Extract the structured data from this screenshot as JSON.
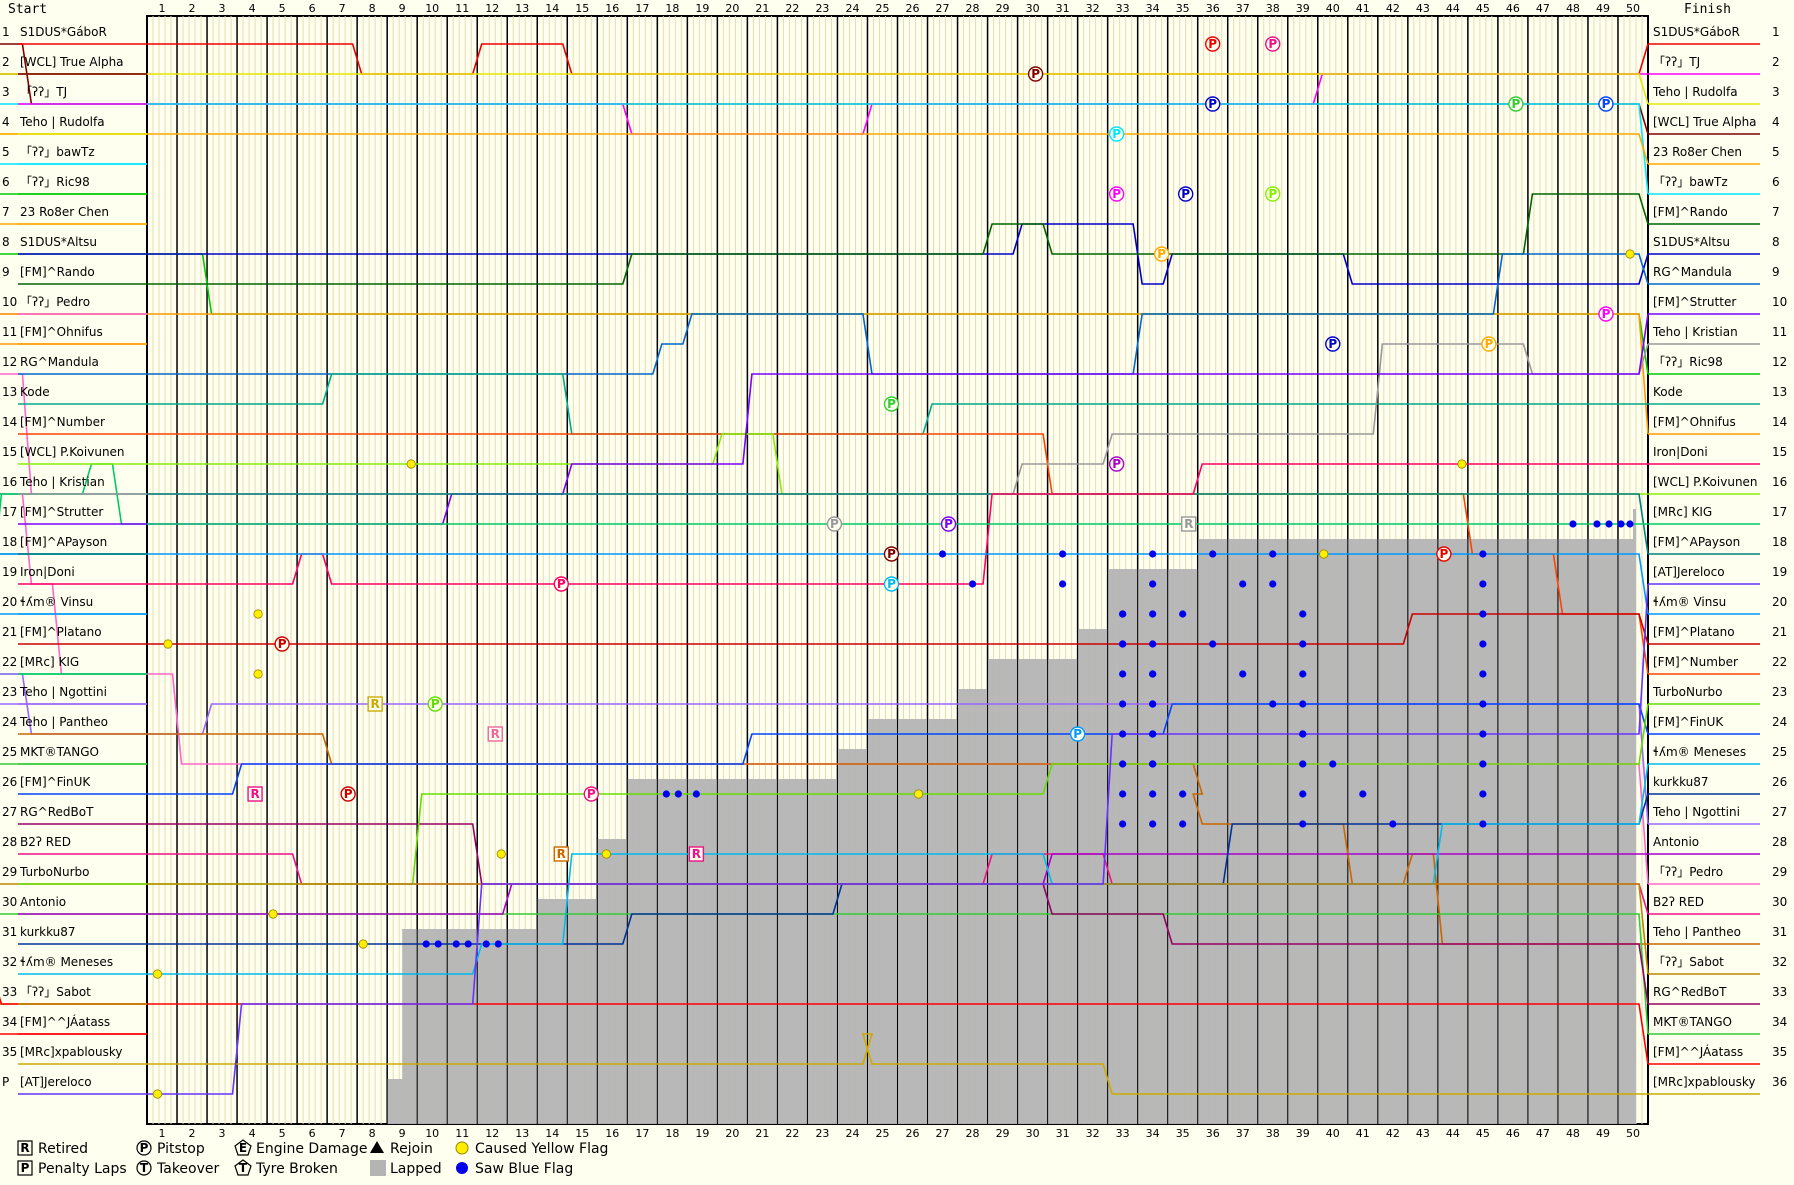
{
  "chart_data": {
    "type": "line",
    "header": {
      "start": "Start",
      "finish": "Finish"
    },
    "laps": 50,
    "positions": 36,
    "left_positions": [
      "1",
      "2",
      "3",
      "4",
      "5",
      "6",
      "7",
      "8",
      "9",
      "10",
      "11",
      "12",
      "13",
      "14",
      "15",
      "16",
      "17",
      "18",
      "19",
      "20",
      "21",
      "22",
      "23",
      "24",
      "25",
      "26",
      "27",
      "28",
      "29",
      "30",
      "31",
      "32",
      "33",
      "34",
      "35",
      "P"
    ],
    "right_positions": [
      "1",
      "2",
      "3",
      "4",
      "5",
      "6",
      "7",
      "8",
      "9",
      "10",
      "11",
      "12",
      "13",
      "14",
      "15",
      "16",
      "17",
      "18",
      "19",
      "20",
      "21",
      "22",
      "23",
      "24",
      "25",
      "26",
      "27",
      "28",
      "29",
      "30",
      "31",
      "32",
      "33",
      "34",
      "35",
      "36"
    ],
    "start_grid": [
      "S1DUS*GáboR",
      "[WCL] True Alpha",
      "「ʔʔ」TJ",
      "Teho | Rudolfa",
      "「ʔʔ」bawTz",
      "「ʔʔ」Ric98",
      "23 Ro8er Chen",
      "S1DUS*Altsu",
      "[FM]^Rando",
      "「ʔʔ」Pedro",
      "[FM]^Ohnifus",
      "RG^Mandula",
      "Kode",
      "[FM]^Number",
      "[WCL] P.Koivunen",
      "Teho | Kristian",
      "[FM]^Strutter",
      "[FM]^APayson",
      "Iron|Doni",
      "ɬʎm® Vinsu",
      "[FM]^Platano",
      "[MRc] KIG",
      "Teho | Ngottini",
      "Teho | Pantheo",
      "MKT®TANGO",
      "[FM]^FinUK",
      "RG^RedBoT",
      "B2ʔ RED",
      "TurboNurbo",
      "Antonio",
      "kurkku87",
      "ɬʎm® Meneses",
      "「ʔʔ」Sabot",
      "[FM]^^JÁatass",
      "[MRc]xpablousky",
      "[AT]Jereloco"
    ],
    "finish_order": [
      "S1DUS*GáboR",
      "「ʔʔ」TJ",
      "Teho | Rudolfa",
      "[WCL] True Alpha",
      "23 Ro8er Chen",
      "「ʔʔ」bawTz",
      "[FM]^Rando",
      "S1DUS*Altsu",
      "RG^Mandula",
      "[FM]^Strutter",
      "Teho | Kristian",
      "「ʔʔ」Ric98",
      "Kode",
      "[FM]^Ohnifus",
      "Iron|Doni",
      "[WCL] P.Koivunen",
      "[MRc] KIG",
      "[FM]^APayson",
      "[AT]Jereloco",
      "ɬʎm® Vinsu",
      "[FM]^Platano",
      "[FM]^Number",
      "TurboNurbo",
      "[FM]^FinUK",
      "ɬʎm® Meneses",
      "kurkku87",
      "Teho | Ngottini",
      "Antonio",
      "「ʔʔ」Pedro",
      "B2ʔ RED",
      "Teho | Pantheo",
      "「ʔʔ」Sabot",
      "RG^RedBoT",
      "MKT®TANGO",
      "[FM]^^JÁatass",
      "[MRc]xpablousky"
    ],
    "lapped_profile": [
      {
        "lap": 8,
        "pos": 36
      },
      {
        "lap": 8.5,
        "pos": 31
      },
      {
        "lap": 12,
        "pos": 31
      },
      {
        "lap": 13,
        "pos": 30
      },
      {
        "lap": 15,
        "pos": 28
      },
      {
        "lap": 16,
        "pos": 26
      },
      {
        "lap": 22,
        "pos": 26
      },
      {
        "lap": 23,
        "pos": 25
      },
      {
        "lap": 24,
        "pos": 24
      },
      {
        "lap": 27,
        "pos": 23
      },
      {
        "lap": 28,
        "pos": 22
      },
      {
        "lap": 31,
        "pos": 21
      },
      {
        "lap": 32,
        "pos": 19
      },
      {
        "lap": 34,
        "pos": 19
      },
      {
        "lap": 35,
        "pos": 18
      },
      {
        "lap": 36,
        "pos": 18
      },
      {
        "lap": 37,
        "pos": 18
      },
      {
        "lap": 39,
        "pos": 18
      },
      {
        "lap": 49.5,
        "pos": 17
      }
    ],
    "legend": [
      {
        "symbol": "R",
        "shape": "square",
        "text": "Retired"
      },
      {
        "symbol": "P",
        "shape": "square",
        "text": "Penalty Laps"
      },
      {
        "symbol": "P",
        "shape": "circle",
        "text": "Pitstop"
      },
      {
        "symbol": "T",
        "shape": "circle",
        "text": "Takeover"
      },
      {
        "symbol": "E",
        "shape": "pentagon",
        "text": "Engine Damage"
      },
      {
        "symbol": "T",
        "shape": "pentagon",
        "text": "Tyre Broken"
      },
      {
        "symbol": "",
        "shape": "triangle",
        "text": "Rejoin"
      },
      {
        "symbol": "",
        "shape": "gray-square",
        "text": "Lapped"
      },
      {
        "symbol": "",
        "shape": "yellow-dot",
        "text": "Caused Yellow Flag"
      },
      {
        "symbol": "",
        "shape": "blue-dot",
        "text": "Saw Blue Flag"
      }
    ],
    "driver_colors": [
      "#ee0000",
      "#800000",
      "#ff00ff",
      "#e6e600",
      "#00e6ff",
      "#00cc00",
      "#ffaa00",
      "#0000cc",
      "#006600",
      "#ff66cc",
      "#ff9900",
      "#0066cc",
      "#00aa88",
      "#ff4400",
      "#88ee00",
      "#999999",
      "#7a00ff",
      "#008080",
      "#ff0066",
      "#0099ff",
      "#cc0000",
      "#00cc66",
      "#9966ff",
      "#cc6600",
      "#33cc33",
      "#0044ff",
      "#990066",
      "#ee1188",
      "#66dd00",
      "#aa00cc",
      "#003399",
      "#00bbee",
      "#bb8800",
      "#ff0000",
      "#ccaa00",
      "#6633ff"
    ],
    "colors": {
      "lapped": "#b4b4b4",
      "vertical_lap": "#000000",
      "blue_flag": "#0000ee",
      "yellow_flag": "#ffee00",
      "background": "#fffff0"
    }
  }
}
